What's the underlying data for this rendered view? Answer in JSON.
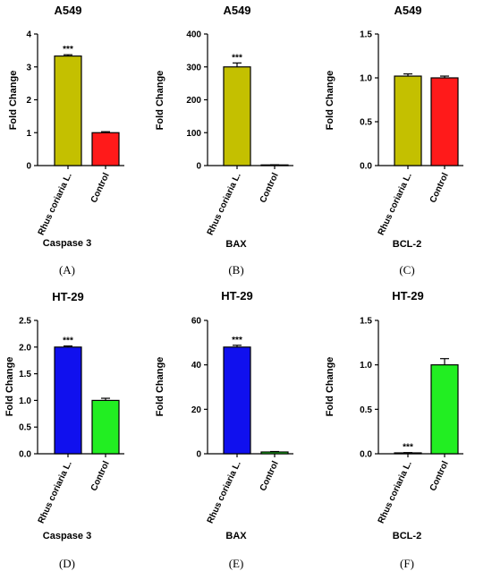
{
  "chart_data": [
    {
      "type": "bar",
      "title": "A549",
      "ylabel": "Fold Change",
      "xlabel": "Caspase 3",
      "panel_label": "(A)",
      "categories": [
        "Rhus coriaria L.",
        "Control"
      ],
      "values": [
        3.33,
        1.0
      ],
      "errors": [
        0.04,
        0.03
      ],
      "bar_colors": [
        "#c4c000",
        "#ff1a1a"
      ],
      "significance": [
        "***",
        ""
      ],
      "ylim": [
        0,
        4
      ],
      "yticks": [
        0,
        1,
        2,
        3,
        4
      ],
      "grid": false
    },
    {
      "type": "bar",
      "title": "A549",
      "ylabel": "Fold Change",
      "xlabel": "BAX",
      "panel_label": "(B)",
      "categories": [
        "Rhus coriaria L.",
        "Control"
      ],
      "values": [
        300,
        2
      ],
      "errors": [
        12,
        0.5
      ],
      "bar_colors": [
        "#c4c000",
        "#ff1a1a"
      ],
      "significance": [
        "***",
        ""
      ],
      "ylim": [
        0,
        400
      ],
      "yticks": [
        0,
        100,
        200,
        300,
        400
      ],
      "grid": false
    },
    {
      "type": "bar",
      "title": "A549",
      "ylabel": "Fold Change",
      "xlabel": "BCL-2",
      "panel_label": "(C)",
      "categories": [
        "Rhus coriaria L.",
        "Control"
      ],
      "values": [
        1.02,
        1.0
      ],
      "errors": [
        0.025,
        0.02
      ],
      "bar_colors": [
        "#c4c000",
        "#ff1a1a"
      ],
      "significance": [
        "",
        ""
      ],
      "ylim": [
        0,
        1.5
      ],
      "yticks": [
        0.0,
        0.5,
        1.0,
        1.5
      ],
      "grid": false
    },
    {
      "type": "bar",
      "title": "HT-29",
      "ylabel": "Fold Change",
      "xlabel": "Caspase 3",
      "panel_label": "(D)",
      "categories": [
        "Rhus coriaria L.",
        "Control"
      ],
      "values": [
        2.0,
        1.0
      ],
      "errors": [
        0.02,
        0.04
      ],
      "bar_colors": [
        "#1010ee",
        "#22ee22"
      ],
      "significance": [
        "***",
        ""
      ],
      "ylim": [
        0,
        2.5
      ],
      "yticks": [
        0.0,
        0.5,
        1.0,
        1.5,
        2.0,
        2.5
      ],
      "grid": false
    },
    {
      "type": "bar",
      "title": "HT-29",
      "ylabel": "Fold Change",
      "xlabel": "BAX",
      "panel_label": "(E)",
      "categories": [
        "Rhus coriaria L.",
        "Control"
      ],
      "values": [
        48,
        0.8
      ],
      "errors": [
        0.8,
        0.2
      ],
      "bar_colors": [
        "#1010ee",
        "#22ee22"
      ],
      "significance": [
        "***",
        ""
      ],
      "ylim": [
        0,
        60
      ],
      "yticks": [
        0,
        20,
        40,
        60
      ],
      "grid": false
    },
    {
      "type": "bar",
      "title": "HT-29",
      "ylabel": "Fold Change",
      "xlabel": "BCL-2",
      "panel_label": "(F)",
      "categories": [
        "Rhus coriaria L.",
        "Control"
      ],
      "values": [
        0.01,
        1.0
      ],
      "errors": [
        0.003,
        0.07
      ],
      "bar_colors": [
        "#1010ee",
        "#22ee22"
      ],
      "significance": [
        "***",
        ""
      ],
      "ylim": [
        0,
        1.5
      ],
      "yticks": [
        0.0,
        0.5,
        1.0,
        1.5
      ],
      "grid": false
    }
  ]
}
